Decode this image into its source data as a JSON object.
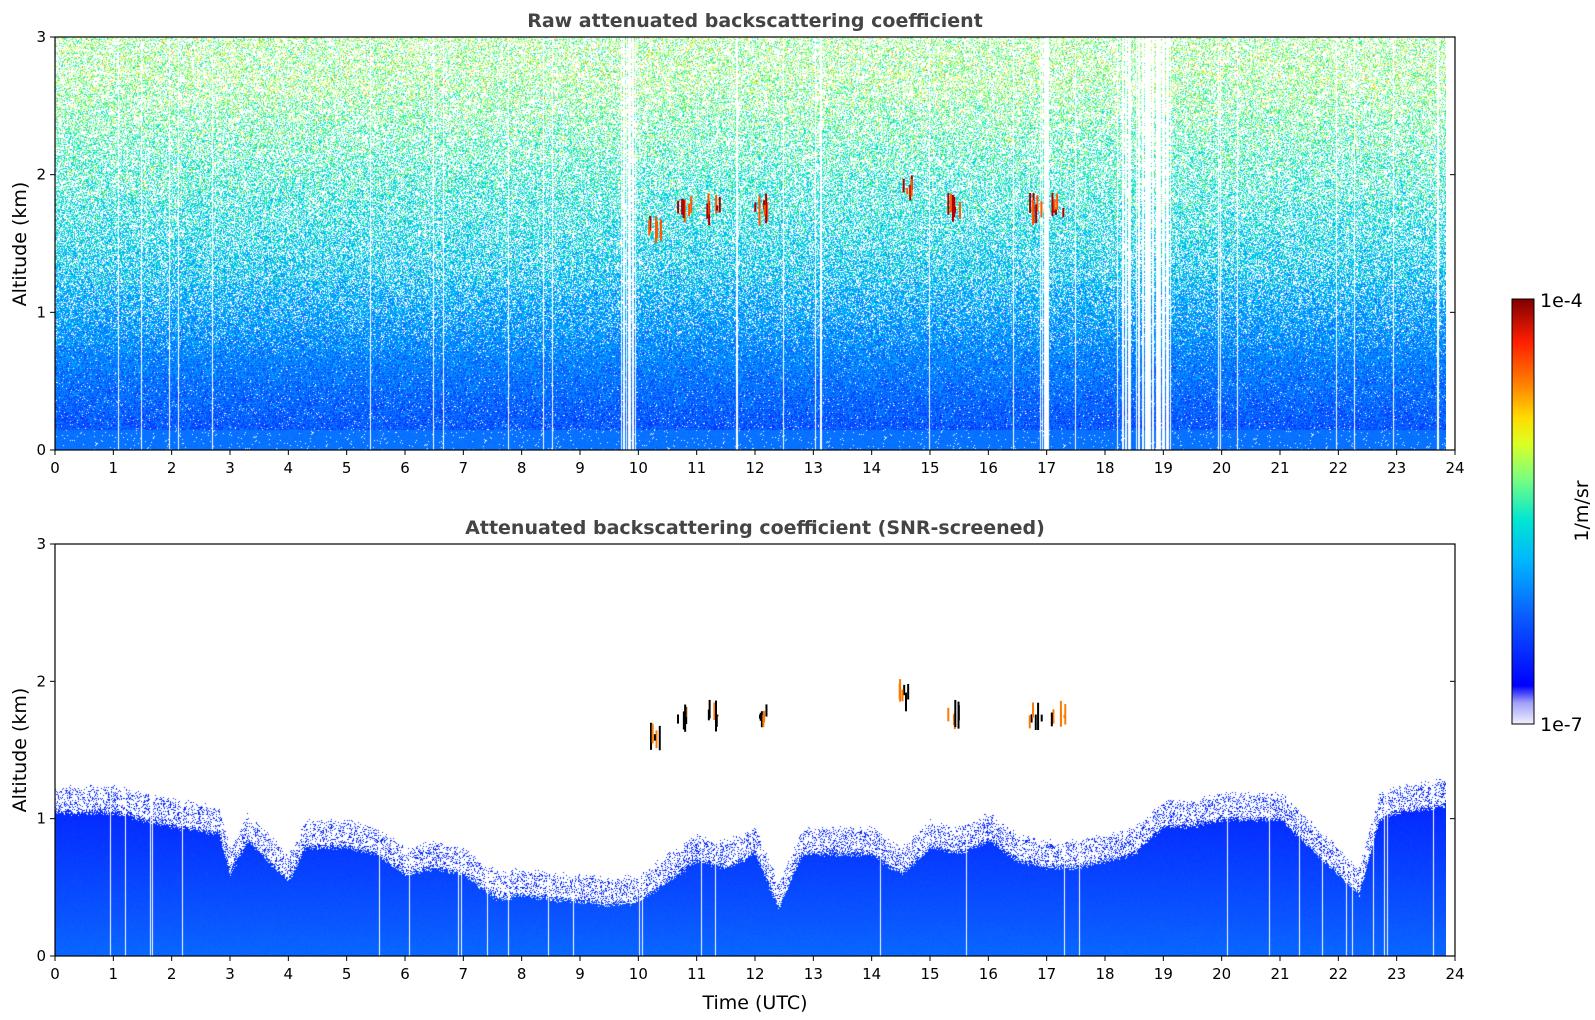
{
  "colors": {
    "colormap": [
      "#ffffff",
      "#c8c8f8",
      "#0000ff",
      "#0a64ff",
      "#00c8ff",
      "#40ffbf",
      "#bfff40",
      "#ffff00",
      "#ff8000",
      "#ff0000",
      "#800000"
    ],
    "axis": "#000000",
    "title": "#444444"
  },
  "chart_data": [
    {
      "type": "heatmap",
      "title": "Raw attenuated backscattering coefficient",
      "xlabel": "",
      "ylabel": "Altitude (km)",
      "xlim": [
        0,
        24
      ],
      "ylim": [
        0,
        3
      ],
      "xticks": [
        0,
        1,
        2,
        3,
        4,
        5,
        6,
        7,
        8,
        9,
        10,
        11,
        12,
        13,
        14,
        15,
        16,
        17,
        18,
        19,
        20,
        21,
        22,
        23,
        24
      ],
      "xtick_labels": [
        "0",
        "1",
        "2",
        "3",
        "4",
        "5",
        "6",
        "7",
        "8",
        "9",
        "10",
        "11",
        "12",
        "13",
        "14",
        "15",
        "16",
        "17",
        "18",
        "19",
        "20",
        "21",
        "22",
        "23",
        "24"
      ],
      "yticks": [
        0,
        1,
        2,
        3
      ],
      "ytick_labels": [
        "0",
        "1",
        "2",
        "3"
      ],
      "data_end_hour": 23.85,
      "gap_bands_hours": [
        [
          9.7,
          10.0
        ],
        [
          16.85,
          17.05
        ],
        [
          18.2,
          19.2
        ]
      ],
      "cloud_features": [
        {
          "time": 10.3,
          "alt": 1.6
        },
        {
          "time": 10.8,
          "alt": 1.75
        },
        {
          "time": 11.3,
          "alt": 1.75
        },
        {
          "time": 12.1,
          "alt": 1.75
        },
        {
          "time": 14.6,
          "alt": 1.9
        },
        {
          "time": 15.4,
          "alt": 1.75
        },
        {
          "time": 16.8,
          "alt": 1.75
        },
        {
          "time": 17.2,
          "alt": 1.75
        }
      ]
    },
    {
      "type": "heatmap",
      "title": "Attenuated backscattering coefficient (SNR-screened)",
      "xlabel": "Time (UTC)",
      "ylabel": "Altitude (km)",
      "xlim": [
        0,
        24
      ],
      "ylim": [
        0,
        3
      ],
      "xticks": [
        0,
        1,
        2,
        3,
        4,
        5,
        6,
        7,
        8,
        9,
        10,
        11,
        12,
        13,
        14,
        15,
        16,
        17,
        18,
        19,
        20,
        21,
        22,
        23,
        24
      ],
      "xtick_labels": [
        "0",
        "1",
        "2",
        "3",
        "4",
        "5",
        "6",
        "7",
        "8",
        "9",
        "10",
        "11",
        "12",
        "13",
        "14",
        "15",
        "16",
        "17",
        "18",
        "19",
        "20",
        "21",
        "22",
        "23",
        "24"
      ],
      "yticks": [
        0,
        1,
        2,
        3
      ],
      "ytick_labels": [
        "0",
        "1",
        "2",
        "3"
      ],
      "data_end_hour": 23.85,
      "boundary_layer_top_km": [
        [
          0.0,
          1.05
        ],
        [
          1.0,
          1.05
        ],
        [
          2.0,
          0.95
        ],
        [
          2.8,
          0.9
        ],
        [
          3.0,
          0.6
        ],
        [
          3.3,
          0.85
        ],
        [
          4.0,
          0.55
        ],
        [
          4.3,
          0.8
        ],
        [
          5.0,
          0.8
        ],
        [
          5.5,
          0.75
        ],
        [
          6.0,
          0.6
        ],
        [
          6.5,
          0.65
        ],
        [
          7.0,
          0.6
        ],
        [
          7.3,
          0.5
        ],
        [
          7.6,
          0.42
        ],
        [
          8.0,
          0.45
        ],
        [
          8.5,
          0.42
        ],
        [
          9.0,
          0.4
        ],
        [
          9.5,
          0.38
        ],
        [
          10.0,
          0.4
        ],
        [
          10.5,
          0.55
        ],
        [
          11.0,
          0.7
        ],
        [
          11.5,
          0.65
        ],
        [
          12.0,
          0.75
        ],
        [
          12.4,
          0.35
        ],
        [
          12.8,
          0.75
        ],
        [
          13.5,
          0.75
        ],
        [
          14.0,
          0.75
        ],
        [
          14.5,
          0.6
        ],
        [
          15.0,
          0.8
        ],
        [
          15.5,
          0.75
        ],
        [
          16.0,
          0.85
        ],
        [
          16.5,
          0.7
        ],
        [
          17.0,
          0.65
        ],
        [
          17.5,
          0.65
        ],
        [
          18.0,
          0.7
        ],
        [
          18.5,
          0.75
        ],
        [
          19.0,
          0.95
        ],
        [
          19.5,
          0.95
        ],
        [
          20.0,
          1.0
        ],
        [
          21.0,
          1.0
        ],
        [
          21.5,
          0.8
        ],
        [
          22.0,
          0.6
        ],
        [
          22.35,
          0.45
        ],
        [
          22.7,
          1.0
        ],
        [
          23.0,
          1.05
        ],
        [
          23.85,
          1.1
        ]
      ],
      "cloud_features": [
        {
          "time": 10.3,
          "alt": 1.6
        },
        {
          "time": 10.8,
          "alt": 1.75
        },
        {
          "time": 11.3,
          "alt": 1.75
        },
        {
          "time": 12.1,
          "alt": 1.75
        },
        {
          "time": 14.6,
          "alt": 1.9
        },
        {
          "time": 15.4,
          "alt": 1.75
        },
        {
          "time": 16.8,
          "alt": 1.75
        },
        {
          "time": 17.2,
          "alt": 1.75
        }
      ]
    }
  ],
  "colorbar": {
    "label": "1/m/sr",
    "max_label": "1e-4",
    "min_label": "1e-7",
    "range": [
      1e-07,
      0.0001
    ],
    "scale": "log"
  }
}
